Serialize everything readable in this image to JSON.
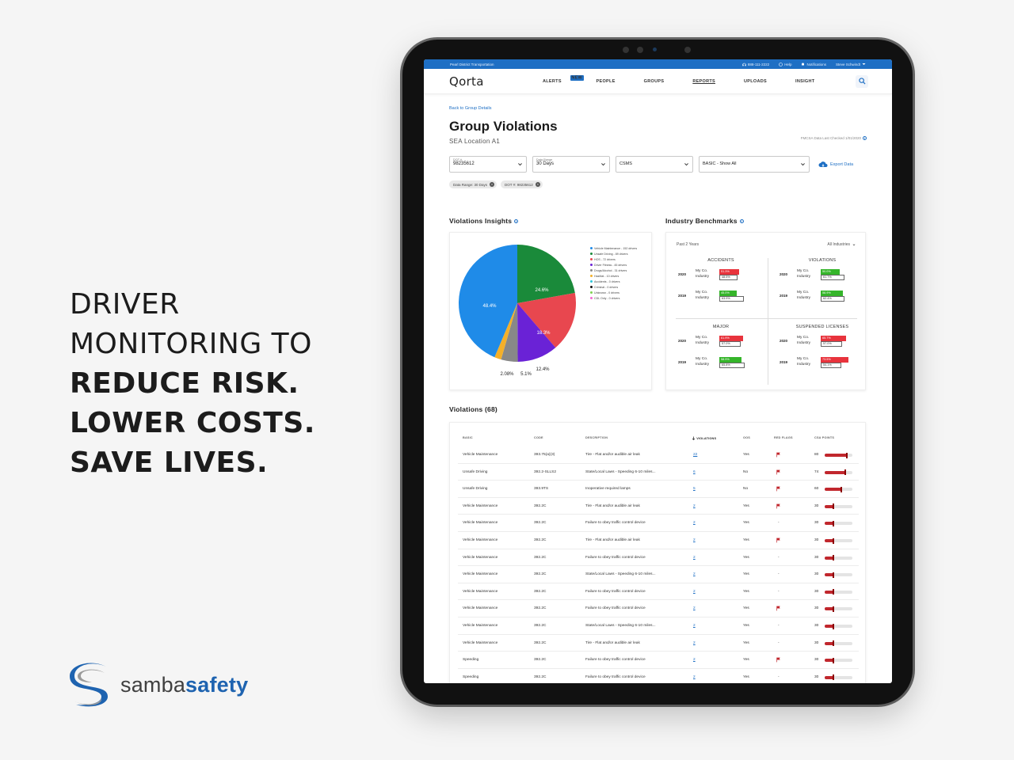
{
  "headline": {
    "lines": [
      "DRIVER",
      "MONITORING TO",
      "REDUCE RISK.",
      "LOWER COSTS.",
      "SAVE LIVES."
    ]
  },
  "logo": {
    "word_light": "samba",
    "word_bold": "safety"
  },
  "topbar": {
    "company": "Pearl District Transportation",
    "phone": "888-111-2222",
    "help": "Help",
    "notifications": "Notifications",
    "user": "Steve Schwindt"
  },
  "nav": {
    "brand": "Qorta",
    "items": [
      "ALERTS",
      "PEOPLE",
      "GROUPS",
      "REPORTS",
      "UPLOADS",
      "INSIGHT"
    ],
    "new_badge": "NEW",
    "active": "REPORTS"
  },
  "page": {
    "back": "Back to Group Details",
    "title": "Group Violations",
    "subtitle": "SEA Location A1",
    "fmcsa": "FMCSA Data Last Checked 1/01/2020"
  },
  "filters": {
    "dot": {
      "label": "DOT #",
      "value": "98235612"
    },
    "range": {
      "label": "Data Range",
      "value": "30 Days"
    },
    "csms": "CSMS",
    "basic": "BASIC - Show All",
    "export": "Export Data"
  },
  "chips": [
    "Data Range: 30 Days",
    "DOT #: 98235612"
  ],
  "insights": {
    "title": "Violations Insights",
    "legend": [
      {
        "label": "Vehicle Maintenance - 152 drivers",
        "color": "#1f8be8"
      },
      {
        "label": "Unsafe Driving - 89 drivers",
        "color": "#1a8a3a"
      },
      {
        "label": "HOS - 72 drivers",
        "color": "#e8474f"
      },
      {
        "label": "Driver Fitness - 45 drivers",
        "color": "#6a22d6"
      },
      {
        "label": "Drugs/Alcohol - 31 drivers",
        "color": "#888888"
      },
      {
        "label": "HazMat - 10 drivers",
        "color": "#f4b029"
      },
      {
        "label": "Accidents - 0 drivers",
        "color": "#2ec4d8"
      },
      {
        "label": "Criminal - 0 drivers",
        "color": "#111111"
      },
      {
        "label": "Unknown - 0 drivers",
        "color": "#7ed24e"
      },
      {
        "label": "CDL Only - 0 drivers",
        "color": "#f36ad0"
      }
    ],
    "slice_labels": [
      "48.4%",
      "24.6%",
      "18.3%",
      "12.4%",
      "5.1%",
      "2.08%"
    ]
  },
  "chart_data": {
    "type": "pie",
    "categories": [
      "Vehicle Maintenance",
      "Unsafe Driving",
      "HOS",
      "Driver Fitness",
      "Drugs/Alcohol",
      "HazMat"
    ],
    "values": [
      48.4,
      24.6,
      18.3,
      12.4,
      5.1,
      2.08
    ],
    "colors": [
      "#1f8be8",
      "#1a8a3a",
      "#e8474f",
      "#6a22d6",
      "#888888",
      "#f4b029"
    ],
    "title": "Violations Insights"
  },
  "benchmarks": {
    "title": "Industry Benchmarks",
    "period": "Past 2 Years",
    "filter": "All Industries",
    "labels": {
      "mine": "My Co.",
      "industry": "Industry"
    },
    "quadrants": [
      {
        "title": "ACCIDENTS",
        "rows": [
          {
            "year": "2020",
            "mine": "51.3%",
            "industry": "48.5%",
            "mine_pct": 51.3,
            "ind_pct": 48.5,
            "color": "#e8333c"
          },
          {
            "year": "2019",
            "mine": "45.0%",
            "industry": "63.9%",
            "mine_pct": 45.0,
            "ind_pct": 63.9,
            "color": "#35b52a"
          }
        ]
      },
      {
        "title": "VIOLATIONS",
        "rows": [
          {
            "year": "2020",
            "mine": "50.0%",
            "industry": "61.7%",
            "mine_pct": 50.0,
            "ind_pct": 61.7,
            "color": "#35b52a"
          },
          {
            "year": "2019",
            "mine": "58.9%",
            "industry": "62.4%",
            "mine_pct": 58.9,
            "ind_pct": 62.4,
            "color": "#35b52a"
          }
        ]
      },
      {
        "title": "MAJOR",
        "rows": [
          {
            "year": "2020",
            "mine": "61.9%",
            "industry": "57.0%",
            "mine_pct": 61.9,
            "ind_pct": 57.0,
            "color": "#e8333c"
          },
          {
            "year": "2019",
            "mine": "58.9%",
            "industry": "65.8%",
            "mine_pct": 58.9,
            "ind_pct": 65.8,
            "color": "#35b52a"
          }
        ]
      },
      {
        "title": "SUSPENDED LICENSES",
        "rows": [
          {
            "year": "2020",
            "mine": "65.7%",
            "industry": "57.0%",
            "mine_pct": 65.7,
            "ind_pct": 57.0,
            "color": "#e8333c"
          },
          {
            "year": "2019",
            "mine": "73.5%",
            "industry": "54.1%",
            "mine_pct": 73.5,
            "ind_pct": 54.1,
            "color": "#e8333c"
          }
        ]
      }
    ]
  },
  "violations": {
    "title": "Violations (68)",
    "columns": [
      "BASIC",
      "CODE",
      "DESCRIPTION",
      "VIOLATIONS",
      "OOS",
      "RED FLAGS",
      "CSA POINTS"
    ],
    "rows": [
      {
        "basic": "Vehicle Maintenance",
        "code": "393.75(a)(3)",
        "desc": "Tire - Flat and/or audible air leak",
        "count": "22",
        "oos": "Yes",
        "flag": true,
        "points": "80"
      },
      {
        "basic": "Unsafe Driving",
        "code": "392.2-SLLS2",
        "desc": "State/Local Laws - Speeding 6-10 miles...",
        "count": "6",
        "oos": "No",
        "flag": true,
        "points": "74"
      },
      {
        "basic": "Unsafe Driving",
        "code": "393.9TS",
        "desc": "Inoperative required lamps",
        "count": "5",
        "oos": "No",
        "flag": true,
        "points": "60"
      },
      {
        "basic": "Vehicle Maintenance",
        "code": "392.2C",
        "desc": "Tire - Flat and/or audible air leak",
        "count": "2",
        "oos": "Yes",
        "flag": true,
        "points": "30"
      },
      {
        "basic": "Vehicle Maintenance",
        "code": "392.2C",
        "desc": "Failure to obey traffic control device",
        "count": "2",
        "oos": "Yes",
        "flag": false,
        "points": "30"
      },
      {
        "basic": "Vehicle Maintenance",
        "code": "392.2C",
        "desc": "Tire - Flat and/or audible air leak",
        "count": "2",
        "oos": "Yes",
        "flag": true,
        "points": "30"
      },
      {
        "basic": "Vehicle Maintenance",
        "code": "392.2C",
        "desc": "Failure to obey traffic control device",
        "count": "2",
        "oos": "Yes",
        "flag": false,
        "points": "30"
      },
      {
        "basic": "Vehicle Maintenance",
        "code": "392.2C",
        "desc": "State/Local Laws - Speeding 6-10 miles...",
        "count": "2",
        "oos": "Yes",
        "flag": false,
        "points": "30"
      },
      {
        "basic": "Vehicle Maintenance",
        "code": "392.2C",
        "desc": "Failure to obey traffic control device",
        "count": "2",
        "oos": "Yes",
        "flag": false,
        "points": "30"
      },
      {
        "basic": "Vehicle Maintenance",
        "code": "392.2C",
        "desc": "Failure to obey traffic control device",
        "count": "2",
        "oos": "Yes",
        "flag": true,
        "points": "30"
      },
      {
        "basic": "Vehicle Maintenance",
        "code": "392.2C",
        "desc": "State/Local Laws - Speeding 6-10 miles...",
        "count": "2",
        "oos": "Yes",
        "flag": false,
        "points": "30"
      },
      {
        "basic": "Vehicle Maintenance",
        "code": "392.2C",
        "desc": "Tire - Flat and/or audible air leak",
        "count": "2",
        "oos": "Yes",
        "flag": false,
        "points": "30"
      },
      {
        "basic": "Speeding",
        "code": "392.2C",
        "desc": "Failure to obey traffic control device",
        "count": "2",
        "oos": "Yes",
        "flag": true,
        "points": "30"
      },
      {
        "basic": "Speeding",
        "code": "392.2C",
        "desc": "Failure to obey traffic control device",
        "count": "2",
        "oos": "Yes",
        "flag": false,
        "points": "30"
      }
    ],
    "no_flag": "-"
  }
}
